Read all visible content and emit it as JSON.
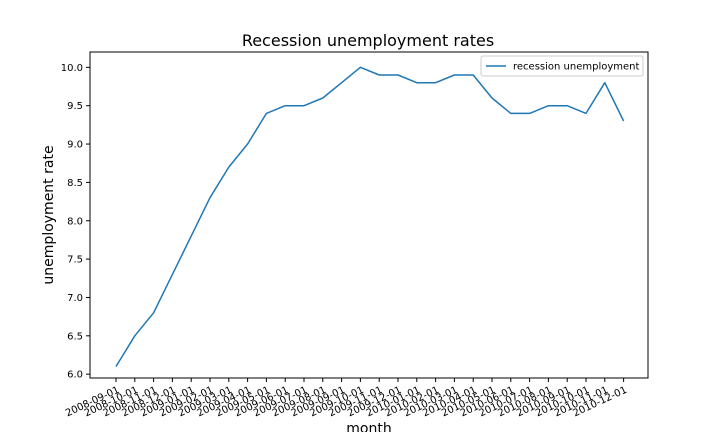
{
  "chart_data": {
    "type": "line",
    "title": "Recession unemployment rates",
    "xlabel": "month",
    "ylabel": "unemployment rate",
    "ylim": [
      5.95,
      10.2
    ],
    "yticks": [
      "6.0",
      "6.5",
      "7.0",
      "7.5",
      "8.0",
      "8.5",
      "9.0",
      "9.5",
      "10.0"
    ],
    "grid": false,
    "legend_position": "top-right",
    "color": "#1f77b4",
    "x": [
      "2008-09-01",
      "2008-10-01",
      "2008-11-01",
      "2008-12-01",
      "2009-01-01",
      "2009-02-01",
      "2009-03-01",
      "2009-04-01",
      "2009-05-01",
      "2009-06-01",
      "2009-07-01",
      "2009-08-01",
      "2009-09-01",
      "2009-10-01",
      "2009-11-01",
      "2009-12-01",
      "2010-01-01",
      "2010-02-01",
      "2010-03-01",
      "2010-04-01",
      "2010-05-01",
      "2010-06-01",
      "2010-07-01",
      "2010-08-01",
      "2010-09-01",
      "2010-10-01",
      "2010-11-01",
      "2010-12-01"
    ],
    "series": [
      {
        "name": "recession unemployment",
        "values": [
          6.1,
          6.5,
          6.8,
          7.3,
          7.8,
          8.3,
          8.7,
          9.0,
          9.4,
          9.5,
          9.5,
          9.6,
          9.8,
          10.0,
          9.9,
          9.9,
          9.8,
          9.8,
          9.9,
          9.9,
          9.6,
          9.4,
          9.4,
          9.5,
          9.5,
          9.4,
          9.8,
          9.3
        ]
      }
    ]
  }
}
